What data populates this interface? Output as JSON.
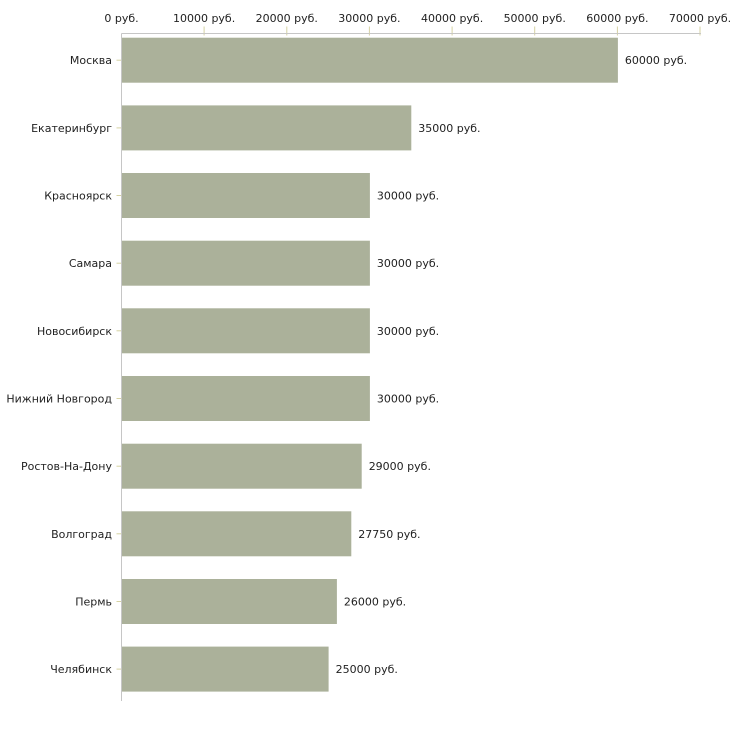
{
  "chart_data": {
    "type": "bar",
    "orientation": "horizontal",
    "categories": [
      "Москва",
      "Екатеринбург",
      "Красноярск",
      "Самара",
      "Новосибирск",
      "Нижний Новгород",
      "Ростов-На-Дону",
      "Волгоград",
      "Пермь",
      "Челябинск"
    ],
    "values": [
      60000,
      35000,
      30000,
      30000,
      30000,
      30000,
      29000,
      27750,
      26000,
      25000
    ],
    "value_labels": [
      "60000 руб.",
      "35000 руб.",
      "30000 руб.",
      "30000 руб.",
      "30000 руб.",
      "30000 руб.",
      "29000 руб.",
      "27750 руб.",
      "26000 руб.",
      "25000 руб."
    ],
    "unit": "руб.",
    "title": "",
    "xlabel": "",
    "ylabel": "",
    "x_axis": {
      "position": "top",
      "min": 0,
      "max": 70000,
      "ticks": [
        0,
        10000,
        20000,
        30000,
        40000,
        50000,
        60000,
        70000
      ],
      "tick_labels": [
        "0 руб.",
        "10000 руб.",
        "20000 руб.",
        "30000 руб.",
        "40000 руб.",
        "50000 руб.",
        "60000 руб.",
        "70000 руб."
      ]
    },
    "grid": false,
    "legend": "none",
    "colors": {
      "bar": "#abb19a",
      "axis_line": "#c6c6c6",
      "tick_mark": "#d6d2a2",
      "text": "#222222",
      "background": "#ffffff"
    }
  }
}
